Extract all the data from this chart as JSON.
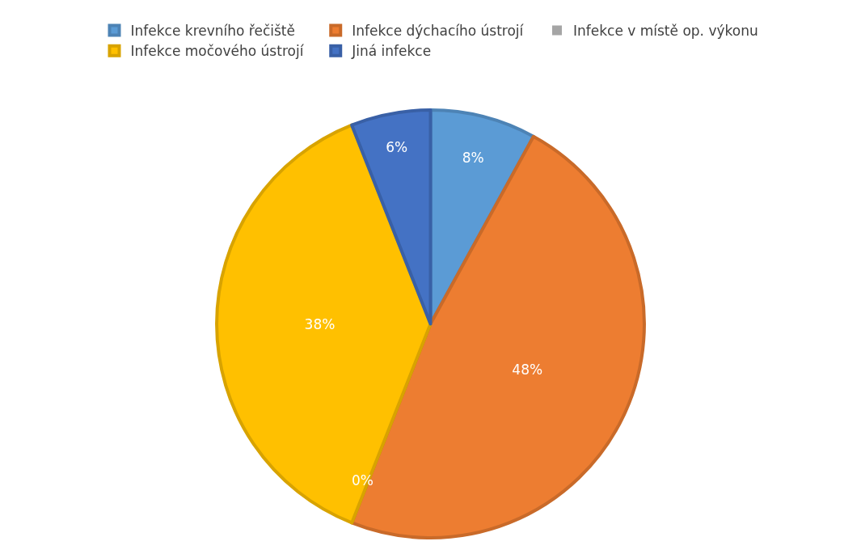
{
  "chart_data": {
    "type": "pie",
    "categories": [
      "Infekce krevního řečiště",
      "Infekce dýchacího ústrojí",
      "Infekce v místě op. výkonu",
      "Infekce močového ústrojí",
      "Jiná infekce"
    ],
    "values": [
      8,
      48,
      0,
      38,
      6
    ],
    "value_labels": [
      "8%",
      "48%",
      "0%",
      "38%",
      "6%"
    ],
    "colors": [
      "#5b9bd5",
      "#ed7d31",
      "#a5a5a5",
      "#ffc000",
      "#4472c4"
    ],
    "legend": "top"
  }
}
